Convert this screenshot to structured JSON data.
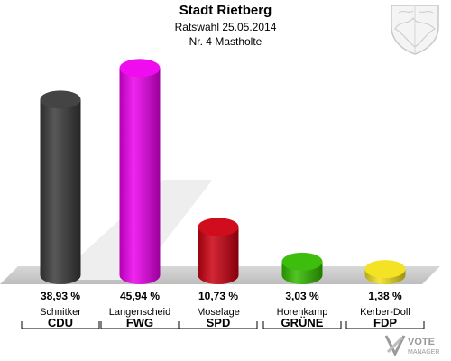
{
  "header": {
    "title": "Stadt Rietberg",
    "subtitle": "Ratswahl 25.05.2014",
    "district": "Nr. 4 Mastholte"
  },
  "chart_data": {
    "type": "bar",
    "categories": [
      "CDU",
      "FWG",
      "SPD",
      "GRÜNE",
      "FDP"
    ],
    "candidates": [
      "Schnitker",
      "Langenscheid",
      "Moselage",
      "Horenkamp",
      "Kerber-Doll"
    ],
    "values": [
      38.93,
      45.94,
      10.73,
      3.03,
      1.38
    ],
    "value_labels": [
      "38,93 %",
      "45,94 %",
      "10,73 %",
      "3,03 %",
      "1,38 %"
    ],
    "colors": [
      "#3a3a3a",
      "#ee00ee",
      "#cc0011",
      "#33bb00",
      "#f3e01a"
    ],
    "ylim": [
      0,
      50
    ],
    "grid": false
  },
  "watermark": {
    "line1": "VOTE",
    "line2": "MANAGER"
  }
}
